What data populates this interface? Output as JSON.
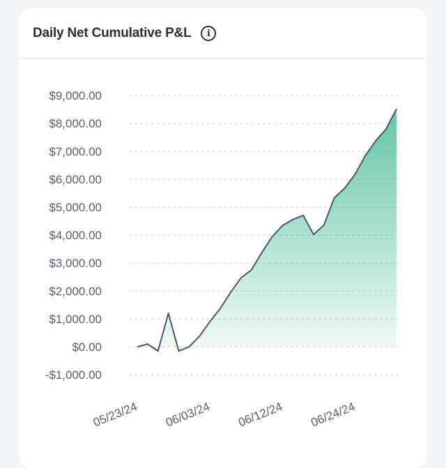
{
  "header": {
    "title": "Daily Net Cumulative P&L",
    "info_icon": "info-circle-icon"
  },
  "chart_data": {
    "type": "area",
    "title": "Daily Net Cumulative P&L",
    "xlabel": "",
    "ylabel": "",
    "ylim": [
      -1000,
      9000
    ],
    "yticks": [
      9000,
      8000,
      7000,
      6000,
      5000,
      4000,
      3000,
      2000,
      1000,
      0,
      -1000
    ],
    "ytick_labels": [
      "$9,000.00",
      "$8,000.00",
      "$7,000.00",
      "$6,000.00",
      "$5,000.00",
      "$4,000.00",
      "$3,000.00",
      "$2,000.00",
      "$1,000.00",
      "$0.00",
      "-$1,000.00"
    ],
    "x": [
      "05/23/24",
      "05/24/24",
      "05/27/24",
      "05/28/24",
      "05/29/24",
      "05/30/24",
      "05/31/24",
      "06/03/24",
      "06/04/24",
      "06/05/24",
      "06/06/24",
      "06/07/24",
      "06/10/24",
      "06/11/24",
      "06/12/24",
      "06/13/24",
      "06/14/24",
      "06/17/24",
      "06/18/24",
      "06/20/24",
      "06/21/24",
      "06/24/24",
      "06/25/24",
      "06/26/24",
      "06/27/24",
      "06/28/24"
    ],
    "xtick_labels": [
      "05/23/24",
      "06/03/24",
      "06/12/24",
      "06/24/24"
    ],
    "values": [
      0,
      100,
      -150,
      1200,
      -150,
      0,
      380,
      900,
      1370,
      1950,
      2470,
      2750,
      3370,
      3940,
      4340,
      4560,
      4710,
      4020,
      4360,
      5330,
      5680,
      6180,
      6850,
      7380,
      7800,
      8520
    ],
    "grid": true,
    "colors": {
      "line": "#4b5470",
      "fill_positive": "#5cc3a0",
      "fill_negative": "#e8a0c0",
      "grid": "#d4d6dc"
    }
  }
}
